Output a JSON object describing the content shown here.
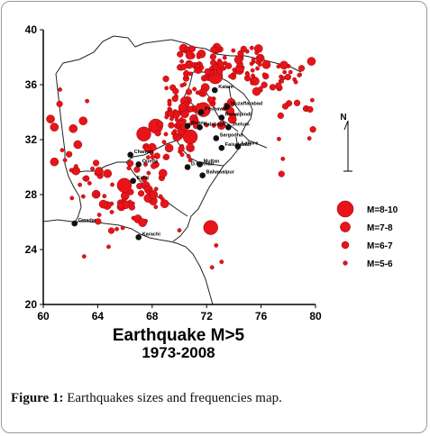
{
  "map": {
    "title_line1": "Earthquake M>5",
    "title_line2": "1973-2008",
    "x_ticks": [
      60,
      64,
      68,
      72,
      76,
      80
    ],
    "y_ticks": [
      20,
      24,
      28,
      32,
      36,
      40
    ],
    "north_label": "N",
    "xlim": [
      60,
      80
    ],
    "ylim": [
      20,
      40
    ],
    "cities": [
      {
        "name": "Kalam",
        "lon": 72.6,
        "lat": 35.6
      },
      {
        "name": "Muzaffarabad",
        "lon": 73.5,
        "lat": 34.4
      },
      {
        "name": "Peshawar",
        "lon": 71.6,
        "lat": 34.0
      },
      {
        "name": "Rawalpindi",
        "lon": 73.1,
        "lat": 33.6
      },
      {
        "name": "Jhelum",
        "lon": 73.6,
        "lat": 32.9
      },
      {
        "name": "Kalabagh",
        "lon": 71.5,
        "lat": 32.9
      },
      {
        "name": "Bannu",
        "lon": 70.6,
        "lat": 33.0
      },
      {
        "name": "Sargodha",
        "lon": 72.7,
        "lat": 32.1
      },
      {
        "name": "Faisalabad",
        "lon": 73.1,
        "lat": 31.4
      },
      {
        "name": "Lahore",
        "lon": 74.3,
        "lat": 31.5
      },
      {
        "name": "Chaman",
        "lon": 66.4,
        "lat": 30.9
      },
      {
        "name": "Quetta",
        "lon": 67.0,
        "lat": 30.2
      },
      {
        "name": "D.G Khan",
        "lon": 70.6,
        "lat": 30.0
      },
      {
        "name": "Multan",
        "lon": 71.5,
        "lat": 30.2
      },
      {
        "name": "Bahawalpur",
        "lon": 71.7,
        "lat": 29.4
      },
      {
        "name": "Kalat",
        "lon": 66.6,
        "lat": 29.0
      },
      {
        "name": "Gwadar",
        "lon": 62.3,
        "lat": 25.9
      },
      {
        "name": "Karachi",
        "lon": 67.0,
        "lat": 24.9
      }
    ],
    "legend": [
      {
        "label": "M=8-10",
        "magnitude_class": 4
      },
      {
        "label": "M=7-8",
        "magnitude_class": 3
      },
      {
        "label": "M=6-7",
        "magnitude_class": 2
      },
      {
        "label": "M=5-6",
        "magnitude_class": 1
      }
    ],
    "colors": {
      "quake": "#e8141a",
      "quake_stroke": "#8a0000",
      "city": "#111111",
      "border": "#222222"
    }
  },
  "caption": {
    "label": "Figure 1:",
    "text": "Earthquakes sizes and frequencies map."
  }
}
